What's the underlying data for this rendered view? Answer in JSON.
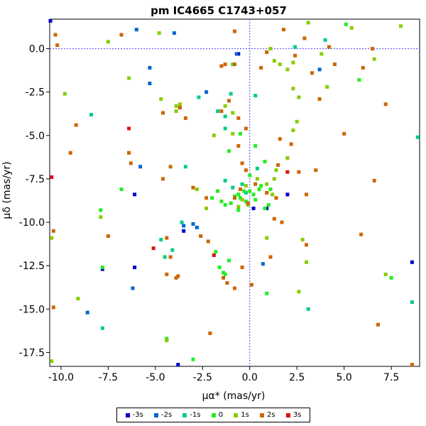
{
  "chart_data": {
    "type": "scatter",
    "title": "pm IC4665  C1743+057",
    "xlabel": "μα* (mas/yr)",
    "ylabel": "μδ (mas/yr)",
    "xlim": [
      -10.6,
      9.0
    ],
    "ylim": [
      -18.3,
      1.7
    ],
    "xticks": [
      -10.0,
      -7.5,
      -5.0,
      -2.5,
      0.0,
      2.5,
      5.0,
      7.5
    ],
    "xtick_labels": [
      "-10.0",
      "-7.5",
      "-5.0",
      "-2.5",
      "0.0",
      "2.5",
      "5.0",
      "7.5"
    ],
    "yticks": [
      0.0,
      -2.5,
      -5.0,
      -7.5,
      -10.0,
      -12.5,
      -15.0,
      -17.5
    ],
    "ytick_labels": [
      "0.0",
      "-2.5",
      "-5.0",
      "-7.5",
      "-10.0",
      "-12.5",
      "-15.0",
      "-17.5"
    ],
    "reference_lines": {
      "x": 0.0,
      "y": 0.0,
      "color": "#4444ff",
      "style": "dotted"
    },
    "legend_position": "bottom-center",
    "series": [
      {
        "name": "-3s",
        "color": "#0000cc",
        "points": [
          [
            -10.6,
            1.6
          ],
          [
            -6.1,
            -8.4
          ],
          [
            -7.8,
            -12.7
          ],
          [
            -6.1,
            -12.6
          ],
          [
            -3.5,
            -10.5
          ],
          [
            -3.8,
            -18.2
          ],
          [
            0.2,
            -9.2
          ],
          [
            0.9,
            -9.2
          ],
          [
            2.0,
            -8.4
          ],
          [
            8.6,
            -12.3
          ],
          [
            -0.6,
            -0.3
          ]
        ]
      },
      {
        "name": "-2s",
        "color": "#0066cc",
        "points": [
          [
            -6.0,
            1.1
          ],
          [
            -4.0,
            0.9
          ],
          [
            -5.3,
            -1.1
          ],
          [
            -5.3,
            -2.0
          ],
          [
            -6.2,
            -13.8
          ],
          [
            -8.6,
            -15.2
          ],
          [
            -2.8,
            -10.3
          ],
          [
            -3.0,
            -10.1
          ],
          [
            -0.7,
            -0.3
          ],
          [
            3.7,
            -1.2
          ],
          [
            0.7,
            -12.4
          ],
          [
            -2.3,
            -2.5
          ],
          [
            -5.8,
            -6.8
          ],
          [
            -3.5,
            -10.2
          ]
        ]
      },
      {
        "name": "-1s",
        "color": "#00cc88",
        "points": [
          [
            -8.4,
            -3.8
          ],
          [
            -7.8,
            -16.1
          ],
          [
            -4.4,
            -16.8
          ],
          [
            -2.7,
            -2.8
          ],
          [
            -1.7,
            -3.6
          ],
          [
            -1.3,
            -3.9
          ],
          [
            -1.3,
            -4.6
          ],
          [
            -3.4,
            -6.8
          ],
          [
            -4.7,
            -11.0
          ],
          [
            -4.5,
            -12.0
          ],
          [
            -4.1,
            -11.6
          ],
          [
            -3.6,
            -10.0
          ],
          [
            -1.3,
            -7.6
          ],
          [
            -0.9,
            -8.0
          ],
          [
            -0.6,
            -8.4
          ],
          [
            0.3,
            -2.7
          ],
          [
            2.4,
            0.1
          ],
          [
            3.1,
            -15.0
          ],
          [
            8.6,
            -14.6
          ],
          [
            8.9,
            -5.1
          ],
          [
            -1.0,
            -2.6
          ],
          [
            4.0,
            0.5
          ],
          [
            -0.4,
            -7.8
          ],
          [
            -0.2,
            -8.3
          ],
          [
            0.4,
            -6.9
          ]
        ]
      },
      {
        "name": "0",
        "color": "#22ee22",
        "points": [
          [
            -7.9,
            -9.3
          ],
          [
            -7.8,
            -12.6
          ],
          [
            -6.8,
            -8.1
          ],
          [
            -4.4,
            -16.7
          ],
          [
            -3.0,
            -17.9
          ],
          [
            -1.8,
            -11.7
          ],
          [
            -1.6,
            -12.6
          ],
          [
            -1.3,
            -13.0
          ],
          [
            -1.1,
            -12.2
          ],
          [
            -2.0,
            -8.6
          ],
          [
            -1.7,
            -8.2
          ],
          [
            -1.5,
            -8.8
          ],
          [
            -1.3,
            -9.0
          ],
          [
            -1.0,
            -8.9
          ],
          [
            -0.8,
            -8.5
          ],
          [
            -0.6,
            -8.4
          ],
          [
            -0.5,
            -8.6
          ],
          [
            -0.3,
            -8.2
          ],
          [
            -0.2,
            -8.8
          ],
          [
            0.0,
            -8.2
          ],
          [
            0.2,
            -8.4
          ],
          [
            0.3,
            -8.7
          ],
          [
            -0.6,
            -9.3
          ],
          [
            0.6,
            -7.9
          ],
          [
            0.8,
            -9.2
          ],
          [
            1.0,
            -9.0
          ],
          [
            1.1,
            -8.1
          ],
          [
            0.9,
            -14.1
          ],
          [
            5.8,
            -1.8
          ],
          [
            7.5,
            -13.2
          ],
          [
            5.1,
            1.4
          ],
          [
            -0.5,
            -4.9
          ],
          [
            -1.1,
            -5.9
          ],
          [
            0.8,
            -6.5
          ],
          [
            -0.9,
            -0.9
          ],
          [
            0.3,
            -5.6
          ],
          [
            -1.4,
            -12.9
          ],
          [
            0.5,
            -8.1
          ],
          [
            0.0,
            -7.3
          ]
        ]
      },
      {
        "name": "1s",
        "color": "#88cc00",
        "points": [
          [
            -7.9,
            -9.7
          ],
          [
            -10.5,
            -10.9
          ],
          [
            -10.5,
            -18.0
          ],
          [
            -9.8,
            -2.6
          ],
          [
            -9.1,
            -14.4
          ],
          [
            -7.5,
            0.4
          ],
          [
            -6.4,
            -1.7
          ],
          [
            -6.4,
            -6.0
          ],
          [
            -4.8,
            0.9
          ],
          [
            -4.7,
            -2.9
          ],
          [
            -3.9,
            -3.3
          ],
          [
            -3.9,
            -3.6
          ],
          [
            -2.8,
            -8.1
          ],
          [
            -2.3,
            -9.2
          ],
          [
            -0.6,
            -9.1
          ],
          [
            -0.9,
            -4.9
          ],
          [
            0.9,
            -7.8
          ],
          [
            0.9,
            -10.9
          ],
          [
            1.1,
            0.0
          ],
          [
            1.3,
            -0.7
          ],
          [
            1.6,
            -0.9
          ],
          [
            2.0,
            -1.2
          ],
          [
            2.3,
            -0.8
          ],
          [
            2.3,
            -2.3
          ],
          [
            2.6,
            -2.8
          ],
          [
            3.1,
            1.5
          ],
          [
            5.4,
            1.2
          ],
          [
            3.8,
            -0.3
          ],
          [
            4.1,
            -2.2
          ],
          [
            6.6,
            -0.6
          ],
          [
            8.0,
            1.3
          ],
          [
            7.2,
            -13.0
          ],
          [
            2.6,
            -14.0
          ],
          [
            3.0,
            -12.3
          ],
          [
            2.8,
            -11.0
          ],
          [
            1.3,
            -7.5
          ],
          [
            -1.9,
            -5.0
          ],
          [
            1.4,
            -7.0
          ],
          [
            -0.1,
            -9.0
          ],
          [
            -4.4,
            -16.8
          ],
          [
            0.4,
            -7.5
          ],
          [
            -0.4,
            -8.7
          ],
          [
            -0.2,
            -7.9
          ],
          [
            1.2,
            -8.4
          ],
          [
            2.0,
            -6.3
          ],
          [
            2.3,
            -4.7
          ],
          [
            2.5,
            -4.2
          ],
          [
            -0.9,
            -3.7
          ],
          [
            -1.3,
            -3.3
          ],
          [
            -3.7,
            -3.2
          ]
        ]
      },
      {
        "name": "2s",
        "color": "#cc6600",
        "points": [
          [
            -10.3,
            0.8
          ],
          [
            -10.2,
            0.2
          ],
          [
            -10.4,
            -10.5
          ],
          [
            -10.4,
            -14.9
          ],
          [
            -9.2,
            -4.4
          ],
          [
            -9.5,
            -6.0
          ],
          [
            -7.5,
            -10.8
          ],
          [
            -6.8,
            0.8
          ],
          [
            -6.4,
            -6.0
          ],
          [
            -6.3,
            -6.6
          ],
          [
            -4.6,
            -3.7
          ],
          [
            -4.6,
            -7.5
          ],
          [
            -4.2,
            -6.8
          ],
          [
            -4.4,
            -10.9
          ],
          [
            -4.2,
            -12.0
          ],
          [
            -4.4,
            -13.0
          ],
          [
            -3.8,
            -13.1
          ],
          [
            -3.9,
            -13.2
          ],
          [
            -3.7,
            -3.4
          ],
          [
            -3.4,
            -4.0
          ],
          [
            -3.0,
            -8.0
          ],
          [
            -2.3,
            -8.6
          ],
          [
            -2.6,
            -10.8
          ],
          [
            -2.2,
            -11.1
          ],
          [
            -1.4,
            -13.2
          ],
          [
            -1.2,
            -13.5
          ],
          [
            -0.8,
            -13.8
          ],
          [
            -2.1,
            -16.4
          ],
          [
            -1.5,
            -1.0
          ],
          [
            -1.5,
            -3.6
          ],
          [
            -0.6,
            -4.0
          ],
          [
            -0.2,
            -4.6
          ],
          [
            -0.6,
            -5.6
          ],
          [
            -0.4,
            -6.6
          ],
          [
            -0.5,
            -8.1
          ],
          [
            -0.1,
            -8.9
          ],
          [
            -0.4,
            -12.6
          ],
          [
            -0.8,
            1.0
          ],
          [
            -0.8,
            -0.9
          ],
          [
            0.6,
            -1.1
          ],
          [
            0.9,
            -0.2
          ],
          [
            1.8,
            1.1
          ],
          [
            2.9,
            0.6
          ],
          [
            4.2,
            0.1
          ],
          [
            4.5,
            -0.9
          ],
          [
            3.7,
            -2.9
          ],
          [
            1.3,
            -9.8
          ],
          [
            1.7,
            -10.0
          ],
          [
            1.1,
            -12.0
          ],
          [
            3.0,
            -11.3
          ],
          [
            3.0,
            -8.4
          ],
          [
            2.6,
            -7.1
          ],
          [
            3.5,
            -7.0
          ],
          [
            5.0,
            -4.9
          ],
          [
            6.6,
            -7.6
          ],
          [
            7.2,
            -3.2
          ],
          [
            6.5,
            0.0
          ],
          [
            6.8,
            -15.9
          ],
          [
            8.6,
            -18.2
          ],
          [
            5.9,
            -10.7
          ],
          [
            0.1,
            -13.6
          ],
          [
            1.5,
            -6.7
          ],
          [
            0.3,
            -7.8
          ],
          [
            1.6,
            -5.2
          ],
          [
            2.2,
            -5.5
          ],
          [
            -0.2,
            -7.0
          ],
          [
            -0.8,
            -8.6
          ],
          [
            0.9,
            -8.3
          ],
          [
            1.4,
            -8.6
          ],
          [
            -1.1,
            -3.0
          ],
          [
            -1.3,
            -0.9
          ],
          [
            2.4,
            -0.4
          ],
          [
            3.3,
            -1.4
          ],
          [
            6.0,
            -1.1
          ]
        ]
      },
      {
        "name": "3s",
        "color": "#dd1111",
        "points": [
          [
            -10.5,
            -7.4
          ],
          [
            -6.4,
            -4.6
          ],
          [
            -5.1,
            -11.5
          ],
          [
            -1.9,
            -11.9
          ],
          [
            2.0,
            -7.1
          ]
        ]
      }
    ]
  }
}
